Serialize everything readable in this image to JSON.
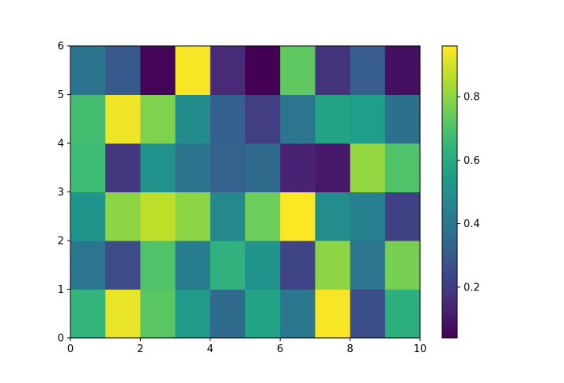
{
  "chart_data": {
    "type": "heatmap",
    "title": "",
    "xlabel": "",
    "ylabel": "",
    "xlim": [
      0,
      10
    ],
    "ylim": [
      0,
      6
    ],
    "x_edges": [
      0,
      1,
      2,
      3,
      4,
      5,
      6,
      7,
      8,
      9,
      10
    ],
    "y_edges": [
      0,
      1,
      2,
      3,
      4,
      5,
      6
    ],
    "xticks": [
      "0",
      "2",
      "4",
      "6",
      "8",
      "10"
    ],
    "yticks": [
      "0",
      "1",
      "2",
      "3",
      "4",
      "5",
      "6"
    ],
    "colormap": "viridis",
    "color_range": [
      0.04,
      0.96
    ],
    "colorbar": {
      "position": "right",
      "ticks": [
        "0.2",
        "0.4",
        "0.6",
        "0.8"
      ],
      "tick_values": [
        0.2,
        0.4,
        0.6,
        0.8
      ]
    },
    "values": [
      [
        0.64,
        0.93,
        0.72,
        0.54,
        0.36,
        0.57,
        0.41,
        0.95,
        0.26,
        0.62
      ],
      [
        0.4,
        0.25,
        0.7,
        0.43,
        0.63,
        0.52,
        0.23,
        0.8,
        0.4,
        0.77
      ],
      [
        0.52,
        0.8,
        0.87,
        0.8,
        0.47,
        0.75,
        0.96,
        0.49,
        0.44,
        0.22
      ],
      [
        0.67,
        0.19,
        0.51,
        0.39,
        0.33,
        0.36,
        0.13,
        0.1,
        0.81,
        0.7
      ],
      [
        0.68,
        0.94,
        0.78,
        0.48,
        0.32,
        0.21,
        0.4,
        0.57,
        0.55,
        0.38
      ],
      [
        0.39,
        0.3,
        0.05,
        0.95,
        0.15,
        0.04,
        0.73,
        0.18,
        0.31,
        0.08
      ]
    ]
  }
}
